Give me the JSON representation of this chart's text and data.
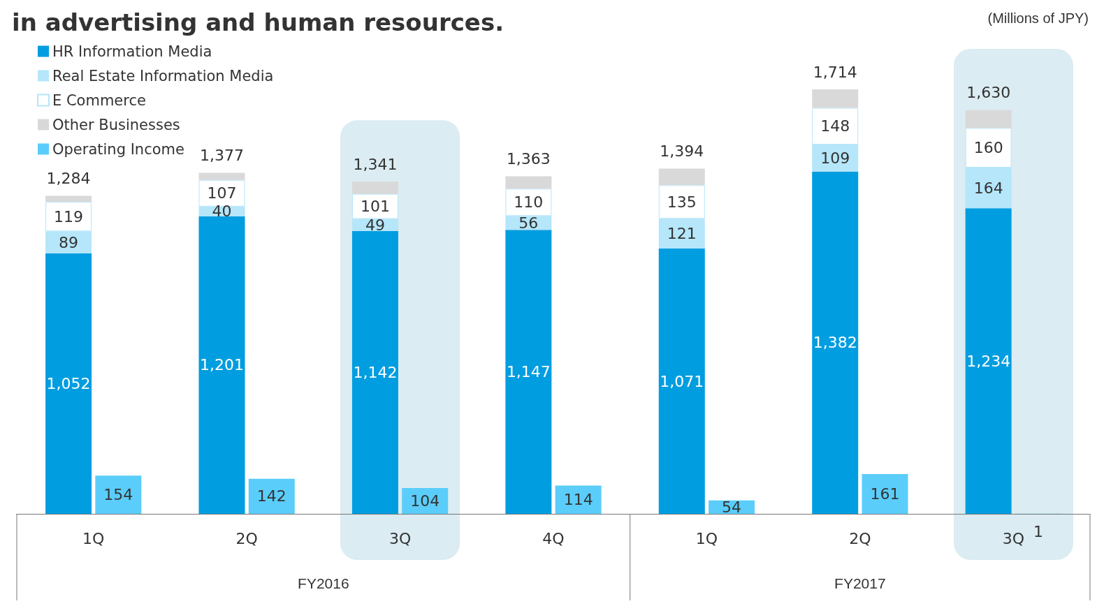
{
  "chart_data": {
    "type": "bar",
    "title": "in advertising and human resources.",
    "categories": [
      "1Q",
      "2Q",
      "3Q",
      "4Q",
      "1Q",
      "2Q",
      "3Q"
    ],
    "stacked": true,
    "series": [
      {
        "name": "HR Information Media",
        "color": "#009de0",
        "values": [
          1052,
          1201,
          1142,
          1147,
          1071,
          1382,
          1234
        ],
        "value_labels": [
          "1,052",
          "1,201",
          "1,142",
          "1,147",
          "1,071",
          "1,382",
          "1,234"
        ]
      },
      {
        "name": "Real Estate Information Media",
        "color": "#b5e6fa",
        "values": [
          89,
          40,
          49,
          56,
          121,
          109,
          164
        ],
        "value_labels": [
          "89",
          "40",
          "49",
          "56",
          "121",
          "109",
          "164"
        ]
      },
      {
        "name": "E Commerce",
        "color": "#ffffff",
        "values": [
          119,
          107,
          101,
          110,
          135,
          148,
          160
        ],
        "value_labels": [
          "119",
          "107",
          "101",
          "110",
          "135",
          "148",
          "160"
        ]
      },
      {
        "name": "Other Businesses",
        "color": "#d9d9d9",
        "values": [
          24,
          29,
          49,
          50,
          67,
          75,
          72
        ]
      },
      {
        "name": "Operating Income",
        "color": "#5bcdfa",
        "type": "bar",
        "axis": "y2",
        "values": [
          154,
          142,
          104,
          114,
          54,
          161,
          1
        ],
        "value_labels": [
          "154",
          "142",
          "104",
          "114",
          "54",
          "161",
          "1"
        ]
      }
    ],
    "totals": [
      "1,284",
      "1,377",
      "1,341",
      "1,363",
      "1,394",
      "1,714",
      "1,630"
    ],
    "bands": [
      {
        "axis": "x",
        "from": "3Q",
        "to": "3Q",
        "color": "#dbecf2"
      }
    ],
    "annotations": [
      "(Millions of JPY)",
      "FY2016",
      "FY2017"
    ],
    "legend": "top left",
    "grid": false
  }
}
